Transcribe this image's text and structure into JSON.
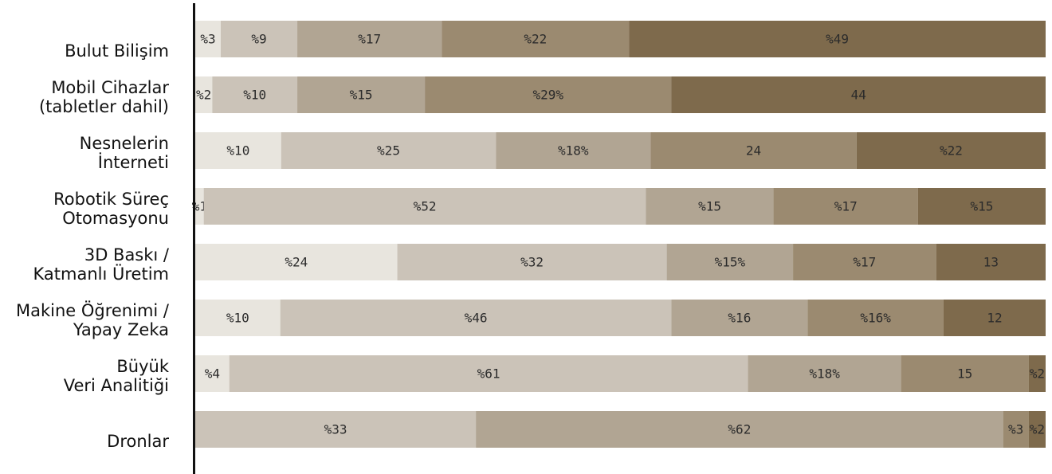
{
  "colors": {
    "background": "#ffffff",
    "axis": "#111111",
    "segments": [
      "#e8e5de",
      "#cbc3b8",
      "#b1a593",
      "#9b8a70",
      "#7e6a4c"
    ]
  },
  "chart_data": {
    "type": "bar",
    "orientation": "horizontal",
    "stacked": true,
    "percent_normalized": true,
    "categories": [
      [
        "Bulut Bilişim"
      ],
      [
        "Mobil Cihazlar",
        "(tabletler dahil)"
      ],
      [
        "Nesnelerin",
        "İnterneti"
      ],
      [
        "Robotik Süreç",
        "Otomasyonu"
      ],
      [
        "3D Baskı /",
        "Katmanlı Üretim"
      ],
      [
        "Makine Öğrenimi /",
        "Yapay Zeka"
      ],
      [
        "Büyük",
        "Veri Analitiği"
      ],
      [
        "Dronlar"
      ]
    ],
    "rows": [
      {
        "segments": [
          {
            "value": 3,
            "label": "%3",
            "color": "#e8e5de"
          },
          {
            "value": 9,
            "label": "%9",
            "color": "#cbc3b8"
          },
          {
            "value": 17,
            "label": "%17",
            "color": "#b1a593"
          },
          {
            "value": 22,
            "label": "%22",
            "color": "#9b8a70"
          },
          {
            "value": 49,
            "label": "%49",
            "color": "#7e6a4c"
          }
        ]
      },
      {
        "segments": [
          {
            "value": 2,
            "label": "%2",
            "color": "#e8e5de"
          },
          {
            "value": 10,
            "label": "%10",
            "color": "#cbc3b8"
          },
          {
            "value": 15,
            "label": "%15",
            "color": "#b1a593"
          },
          {
            "value": 29,
            "label": "%29%",
            "color": "#9b8a70"
          },
          {
            "value": 44,
            "label": "44",
            "color": "#7e6a4c"
          }
        ]
      },
      {
        "segments": [
          {
            "value": 10,
            "label": "%10",
            "color": "#e8e5de"
          },
          {
            "value": 25,
            "label": "%25",
            "color": "#cbc3b8"
          },
          {
            "value": 18,
            "label": "%18%",
            "color": "#b1a593"
          },
          {
            "value": 24,
            "label": "24",
            "color": "#9b8a70"
          },
          {
            "value": 22,
            "label": "%22",
            "color": "#7e6a4c"
          }
        ]
      },
      {
        "segments": [
          {
            "value": 1,
            "label": "%1",
            "color": "#e8e5de"
          },
          {
            "value": 52,
            "label": "%52",
            "color": "#cbc3b8"
          },
          {
            "value": 15,
            "label": "%15",
            "color": "#b1a593"
          },
          {
            "value": 17,
            "label": "%17",
            "color": "#9b8a70"
          },
          {
            "value": 15,
            "label": "%15",
            "color": "#7e6a4c"
          }
        ]
      },
      {
        "segments": [
          {
            "value": 24,
            "label": "%24",
            "color": "#e8e5de"
          },
          {
            "value": 32,
            "label": "%32",
            "color": "#cbc3b8"
          },
          {
            "value": 15,
            "label": "%15%",
            "color": "#b1a593"
          },
          {
            "value": 17,
            "label": "%17",
            "color": "#9b8a70"
          },
          {
            "value": 13,
            "label": "13",
            "color": "#7e6a4c"
          }
        ]
      },
      {
        "segments": [
          {
            "value": 10,
            "label": "%10",
            "color": "#e8e5de"
          },
          {
            "value": 46,
            "label": "%46",
            "color": "#cbc3b8"
          },
          {
            "value": 16,
            "label": "%16",
            "color": "#b1a593"
          },
          {
            "value": 16,
            "label": "%16%",
            "color": "#9b8a70"
          },
          {
            "value": 12,
            "label": "12",
            "color": "#7e6a4c"
          }
        ]
      },
      {
        "segments": [
          {
            "value": 4,
            "label": "%4",
            "color": "#e8e5de"
          },
          {
            "value": 61,
            "label": "%61",
            "color": "#cbc3b8"
          },
          {
            "value": 18,
            "label": "%18%",
            "color": "#b1a593"
          },
          {
            "value": 15,
            "label": "15",
            "color": "#9b8a70"
          },
          {
            "value": 2,
            "label": "%2",
            "color": "#7e6a4c"
          }
        ]
      },
      {
        "segments": [
          {
            "value": 33,
            "label": "%33",
            "color": "#cbc3b8"
          },
          {
            "value": 62,
            "label": "%62",
            "color": "#b1a593"
          },
          {
            "value": 3,
            "label": "%3",
            "color": "#9b8a70"
          },
          {
            "value": 2,
            "label": "%2",
            "color": "#7e6a4c"
          }
        ]
      }
    ],
    "title": "",
    "xlabel": "",
    "ylabel": "",
    "legend": "none",
    "grid": false
  }
}
